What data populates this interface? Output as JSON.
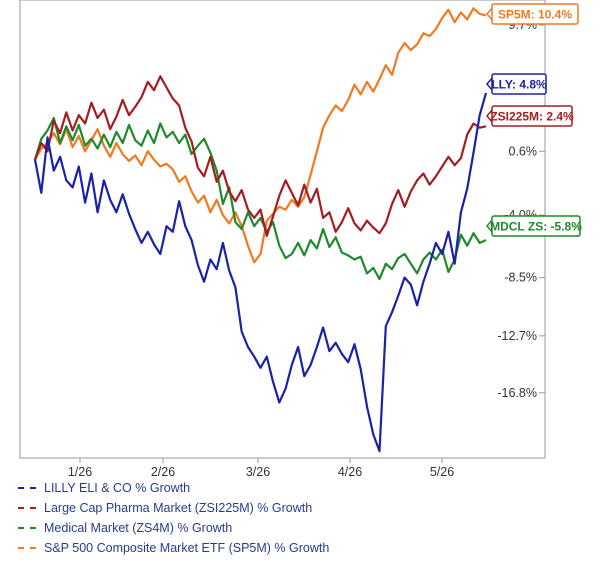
{
  "chart_data": {
    "type": "line",
    "title": "",
    "xlabel": "",
    "ylabel": "",
    "ylim": [
      -21.5,
      11.5
    ],
    "x_ticks": [
      "1/26",
      "2/26",
      "3/26",
      "4/26",
      "5/26"
    ],
    "y_ticks": [
      "-16.8%",
      "-12.7%",
      "-8.5%",
      "-4.0%",
      "0.6%",
      "5.1%",
      "9.7%"
    ],
    "y_tick_values": [
      -16.8,
      -12.7,
      -8.5,
      -4.0,
      0.6,
      5.1,
      9.7
    ],
    "grid": false,
    "legend_position": "bottom",
    "series": [
      {
        "name": "LILLY ELI & CO % Growth",
        "color": "#1a22a8",
        "end_label": "LLY: 4.8%",
        "x": [
          0,
          2,
          4,
          6,
          8,
          10,
          12,
          14,
          16,
          18,
          20,
          22,
          24,
          26,
          28,
          30,
          32,
          34,
          36,
          38,
          40,
          42,
          44,
          46,
          48,
          50,
          52,
          54,
          56,
          58,
          60,
          62,
          64,
          66,
          68,
          70,
          72,
          74,
          76,
          78,
          80,
          82,
          84,
          86,
          88,
          90,
          92,
          94,
          96,
          98,
          100,
          102,
          104,
          106,
          108,
          110,
          112,
          114,
          116,
          118,
          120,
          122,
          124,
          126,
          128,
          130,
          132,
          134,
          136,
          138,
          140,
          142,
          144
        ],
        "values": [
          0.0,
          -2.4,
          1.6,
          -0.8,
          0.2,
          -1.5,
          -2.0,
          -0.5,
          -3.1,
          -1.0,
          -3.8,
          -1.5,
          -2.9,
          -3.8,
          -2.5,
          -3.9,
          -5.0,
          -6.0,
          -5.2,
          -6.1,
          -6.8,
          -4.8,
          -5.2,
          -3.0,
          -4.8,
          -5.8,
          -7.6,
          -8.8,
          -7.2,
          -7.9,
          -6.0,
          -8.0,
          -9.2,
          -12.4,
          -13.5,
          -14.2,
          -15.0,
          -14.2,
          -16.0,
          -17.5,
          -16.5,
          -14.8,
          -13.5,
          -15.6,
          -14.8,
          -13.5,
          -12.1,
          -13.8,
          -13.2,
          -14.0,
          -14.6,
          -13.3,
          -15.1,
          -17.8,
          -19.8,
          -21.0,
          -12.0,
          -11.0,
          -9.8,
          -8.5,
          -9.0,
          -10.5,
          -8.8,
          -7.5,
          -6.0,
          -6.8,
          -5.2,
          -7.5,
          -3.8,
          -2.1,
          0.5,
          3.2,
          4.8
        ]
      },
      {
        "name": "Large Cap Pharma Market (ZSI225M) % Growth",
        "color": "#a31e22",
        "end_label": "ZSI225M: 2.4%",
        "x": [
          0,
          2,
          4,
          6,
          8,
          10,
          12,
          14,
          16,
          18,
          20,
          22,
          24,
          26,
          28,
          30,
          32,
          34,
          36,
          38,
          40,
          42,
          44,
          46,
          48,
          50,
          52,
          54,
          56,
          58,
          60,
          62,
          64,
          66,
          68,
          70,
          72,
          74,
          76,
          78,
          80,
          82,
          84,
          86,
          88,
          90,
          92,
          94,
          96,
          98,
          100,
          102,
          104,
          106,
          108,
          110,
          112,
          114,
          116,
          118,
          120,
          122,
          124,
          126,
          128,
          130,
          132,
          134,
          136,
          138,
          140,
          142,
          144
        ],
        "values": [
          0.0,
          1.2,
          0.6,
          2.8,
          1.9,
          3.4,
          2.1,
          3.2,
          2.6,
          4.1,
          3.0,
          3.6,
          2.2,
          3.1,
          4.3,
          3.2,
          3.8,
          4.5,
          5.6,
          5.0,
          6.0,
          5.2,
          4.4,
          3.9,
          2.3,
          1.3,
          -0.6,
          -1.2,
          0.2,
          -1.6,
          -0.8,
          -2.3,
          -3.0,
          -2.2,
          -3.6,
          -4.2,
          -3.6,
          -5.5,
          -4.1,
          -2.6,
          -1.5,
          -2.4,
          -3.3,
          -1.8,
          -3.1,
          -2.1,
          -4.2,
          -3.8,
          -5.2,
          -4.5,
          -3.5,
          -4.6,
          -5.1,
          -4.4,
          -4.9,
          -5.3,
          -4.6,
          -3.2,
          -2.2,
          -3.4,
          -2.3,
          -1.5,
          -1.0,
          -1.8,
          -1.2,
          -0.5,
          0.2,
          -0.4,
          0.1,
          1.8,
          2.6,
          2.3,
          2.4
        ]
      },
      {
        "name": "Medical Market (ZS4M) % Growth",
        "color": "#1f8a2c",
        "end_label": "MDCL ZS: -5.8%",
        "x": [
          0,
          2,
          4,
          6,
          8,
          10,
          12,
          14,
          16,
          18,
          20,
          22,
          24,
          26,
          28,
          30,
          32,
          34,
          36,
          38,
          40,
          42,
          44,
          46,
          48,
          50,
          52,
          54,
          56,
          58,
          60,
          62,
          64,
          66,
          68,
          70,
          72,
          74,
          76,
          78,
          80,
          82,
          84,
          86,
          88,
          90,
          92,
          94,
          96,
          98,
          100,
          102,
          104,
          106,
          108,
          110,
          112,
          114,
          116,
          118,
          120,
          122,
          124,
          126,
          128,
          130,
          132,
          134,
          136,
          138,
          140,
          142,
          144
        ],
        "values": [
          0.0,
          1.5,
          2.1,
          3.0,
          1.2,
          2.4,
          1.4,
          2.5,
          1.0,
          1.5,
          0.8,
          1.8,
          0.9,
          2.0,
          1.2,
          2.5,
          1.4,
          1.0,
          2.1,
          1.2,
          2.6,
          1.6,
          2.0,
          1.2,
          1.8,
          0.4,
          1.0,
          1.5,
          0.5,
          -0.8,
          -3.2,
          -2.0,
          -4.5,
          -5.0,
          -3.8,
          -4.8,
          -4.2,
          -5.2,
          -4.5,
          -6.2,
          -7.1,
          -6.8,
          -6.0,
          -6.9,
          -5.8,
          -6.4,
          -5.0,
          -6.3,
          -5.6,
          -6.7,
          -6.9,
          -7.2,
          -7.0,
          -8.2,
          -7.8,
          -8.6,
          -7.5,
          -7.9,
          -7.1,
          -6.8,
          -7.5,
          -8.2,
          -7.2,
          -6.7,
          -7.2,
          -6.5,
          -8.1,
          -7.2,
          -5.4,
          -6.2,
          -5.3,
          -6.0,
          -5.8
        ]
      },
      {
        "name": "S&P 500 Composite Market ETF (SP5M) % Growth",
        "color": "#f07a22",
        "end_label": "SP5M: 10.4%",
        "x": [
          0,
          2,
          4,
          6,
          8,
          10,
          12,
          14,
          16,
          18,
          20,
          22,
          24,
          26,
          28,
          30,
          32,
          34,
          36,
          38,
          40,
          42,
          44,
          46,
          48,
          50,
          52,
          54,
          56,
          58,
          60,
          62,
          64,
          66,
          68,
          70,
          72,
          74,
          76,
          78,
          80,
          82,
          84,
          86,
          88,
          90,
          92,
          94,
          96,
          98,
          100,
          102,
          104,
          106,
          108,
          110,
          112,
          114,
          116,
          118,
          120,
          122,
          124,
          126,
          128,
          130,
          132,
          134,
          136,
          138,
          140,
          142,
          144
        ],
        "values": [
          0.0,
          0.8,
          1.2,
          1.9,
          1.1,
          2.2,
          0.9,
          1.7,
          0.6,
          1.4,
          2.2,
          1.0,
          0.2,
          1.2,
          0.4,
          -0.1,
          0.3,
          -0.4,
          0.6,
          0.0,
          -0.5,
          -0.3,
          -0.7,
          -1.6,
          -1.2,
          -2.3,
          -3.1,
          -2.6,
          -3.8,
          -2.9,
          -4.0,
          -4.6,
          -3.8,
          -4.8,
          -6.2,
          -7.4,
          -6.8,
          -4.4,
          -3.9,
          -3.4,
          -3.6,
          -2.9,
          -3.4,
          -2.7,
          -1.1,
          0.6,
          2.3,
          3.2,
          3.9,
          3.5,
          4.3,
          5.4,
          4.7,
          5.6,
          4.9,
          5.8,
          6.8,
          6.1,
          7.7,
          8.4,
          7.9,
          8.3,
          9.1,
          8.9,
          9.4,
          10.2,
          10.8,
          9.9,
          10.6,
          10.1,
          10.9,
          10.5,
          10.4
        ]
      }
    ]
  }
}
